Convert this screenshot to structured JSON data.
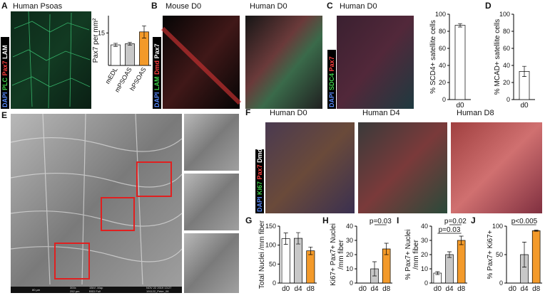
{
  "figure": {
    "panel_letters": [
      "A",
      "B",
      "C",
      "D",
      "E",
      "F",
      "G",
      "H",
      "I",
      "J"
    ],
    "image_titles": [
      "Human Psoas",
      "Mouse D0",
      "Human D0",
      "Human D0",
      "Human D0",
      "Human D4",
      "Human D8"
    ],
    "stains": {
      "A": [
        "DAPI",
        "PLC",
        "Pax7",
        "LAM"
      ],
      "B": [
        "DAPI",
        "LAM",
        "Dmd",
        "Pax7"
      ],
      "C": [
        "DAPI",
        "SDC4",
        "Pax7"
      ],
      "F": [
        "DAPI",
        "Ki67",
        "Pax7",
        "Dmd"
      ]
    },
    "sem_footer": [
      "80 µm",
      "300x",
      "252 µm",
      "15kV -Map",
      "BSD Full",
      "NOV 22 2019 13:27",
      "191122_Peter_08"
    ]
  },
  "chart_data": [
    {
      "type": "bar",
      "ylabel": [
        "Pax7 per mm²"
      ],
      "categories": [
        "mEDL",
        "mPSOAS",
        "hPSOAS"
      ],
      "values": [
        9.5,
        10,
        15.5
      ],
      "errors": [
        0.7,
        0.7,
        2.8
      ],
      "colors": [
        "#ffffff",
        "#c8c8c8",
        "#f39a2a"
      ],
      "ylim": [
        0,
        23
      ],
      "yticks": [
        15
      ]
    },
    {
      "type": "bar",
      "ylabel": [
        "% SCD4+ satellite cells"
      ],
      "categories": [
        "d0"
      ],
      "values": [
        87
      ],
      "errors": [
        2
      ],
      "colors": [
        "#ffffff"
      ],
      "ylim": [
        0,
        100
      ],
      "yticks": [
        0,
        20,
        40,
        60,
        80,
        100
      ]
    },
    {
      "type": "bar",
      "ylabel": [
        "% MCAD+ satellite cells"
      ],
      "categories": [
        "d0"
      ],
      "values": [
        33
      ],
      "errors": [
        6
      ],
      "colors": [
        "#ffffff"
      ],
      "ylim": [
        0,
        100
      ],
      "yticks": [
        0,
        20,
        40,
        60,
        80,
        100
      ]
    },
    {
      "type": "bar",
      "ylabel": [
        "Total Nuclei /mm fiber"
      ],
      "categories": [
        "d0",
        "d4",
        "d8"
      ],
      "values": [
        117,
        118,
        85
      ],
      "errors": [
        15,
        15,
        10
      ],
      "colors": [
        "#ffffff",
        "#c8c8c8",
        "#f39a2a"
      ],
      "ylim": [
        0,
        150
      ],
      "yticks": [
        0,
        50,
        100,
        150
      ]
    },
    {
      "type": "bar",
      "ylabel": [
        "Ki67+ Pax7+ Nuclei",
        "/mm fiber"
      ],
      "categories": [
        "d0",
        "d4",
        "d8"
      ],
      "values": [
        0,
        10,
        24
      ],
      "errors": [
        0,
        5,
        4
      ],
      "colors": [
        "#ffffff",
        "#c8c8c8",
        "#f39a2a"
      ],
      "ylim": [
        0,
        40
      ],
      "yticks": [
        0,
        10,
        20,
        30,
        40
      ],
      "annotations": [
        "p=0.03"
      ]
    },
    {
      "type": "bar",
      "ylabel": [
        "% Pax7+ Nuclei",
        "/mm fiber"
      ],
      "categories": [
        "d0",
        "d4",
        "d8"
      ],
      "values": [
        7,
        20,
        30
      ],
      "errors": [
        1,
        2,
        3
      ],
      "colors": [
        "#ffffff",
        "#c8c8c8",
        "#f39a2a"
      ],
      "ylim": [
        0,
        40
      ],
      "yticks": [
        0,
        10,
        20,
        30,
        40
      ],
      "annotations": [
        "p=0.02",
        "p=0.03"
      ]
    },
    {
      "type": "bar",
      "ylabel": [
        "% Pax7+ Ki67+"
      ],
      "categories": [
        "d0",
        "d4",
        "d8"
      ],
      "values": [
        0,
        50,
        92
      ],
      "errors": [
        0,
        22,
        1
      ],
      "colors": [
        "#ffffff",
        "#c8c8c8",
        "#f39a2a"
      ],
      "ylim": [
        0,
        100
      ],
      "yticks": [
        0,
        50,
        100
      ],
      "annotations": [
        "p<0.005"
      ]
    }
  ]
}
